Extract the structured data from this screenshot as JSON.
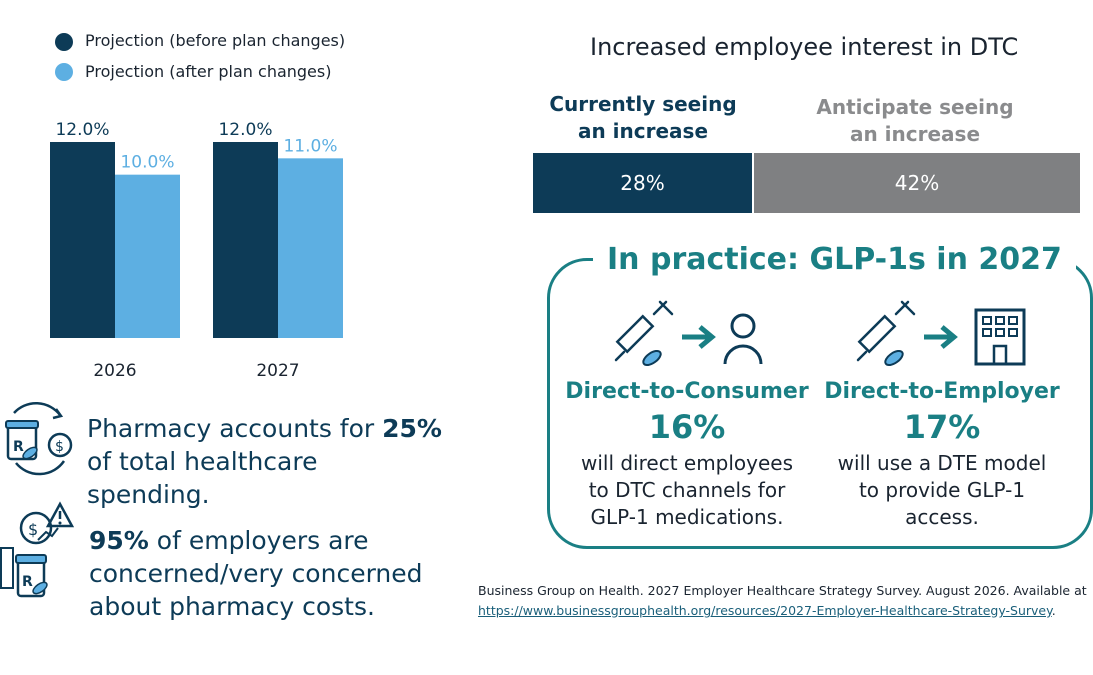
{
  "legend": {
    "items": [
      {
        "label": "Projection (before plan changes)",
        "color": "#0d3b57"
      },
      {
        "label": "Projection (after plan changes)",
        "color": "#5dafe2"
      }
    ]
  },
  "chart_data": {
    "type": "bar",
    "categories": [
      "2026",
      "2027"
    ],
    "series": [
      {
        "name": "Projection (before plan changes)",
        "values": [
          12.0,
          12.0
        ],
        "labels": [
          "12.0%",
          "12.0%"
        ],
        "color": "#0d3b57"
      },
      {
        "name": "Projection (after plan changes)",
        "values": [
          10.0,
          11.0
        ],
        "labels": [
          "10.0%",
          "11.0%"
        ],
        "color": "#5dafe2"
      }
    ],
    "ylim": [
      0,
      12.0
    ],
    "grid": false,
    "legend_position": "top-left"
  },
  "stats": {
    "pharmacy": {
      "prefix": "Pharmacy accounts for ",
      "highlight": "25%",
      "suffix": "of total healthcare spending."
    },
    "concern": {
      "highlight": "95%",
      "line1_rest": " of employers are",
      "line2": "concerned/very concerned",
      "line3": "about pharmacy costs."
    }
  },
  "dtc": {
    "title": "Increased employee interest in DTC",
    "current_head_line1": "Currently seeing",
    "current_head_line2": "an increase",
    "anticipate_head_line1": "Anticipate seeing",
    "anticipate_head_line2": "an increase",
    "current_value": "28%",
    "anticipate_value": "42%",
    "current_pct": 28,
    "anticipate_pct": 42,
    "colors": {
      "current": "#0d3b57",
      "anticipate": "#7f8082"
    }
  },
  "practice": {
    "title": "In practice: GLP-1s in 2027",
    "dtc_model": {
      "head": "Direct-to-Consumer",
      "pct": "16%",
      "desc1": "will direct employees",
      "desc2": "to DTC channels for",
      "desc3": "GLP-1 medications."
    },
    "dte_model": {
      "head": "Direct-to-Employer",
      "pct": "17%",
      "desc1": "will use a DTE model",
      "desc2": "to provide GLP-1",
      "desc3": "access."
    },
    "accent": "#1a7f84"
  },
  "source": {
    "text": "Business Group on Health. 2027 Employer Healthcare Strategy Survey. August 2026. Available at",
    "link": "https://www.businessgrouphealth.org/resources/2027-Employer-Healthcare-Strategy-Survey",
    "link_suffix": "."
  }
}
